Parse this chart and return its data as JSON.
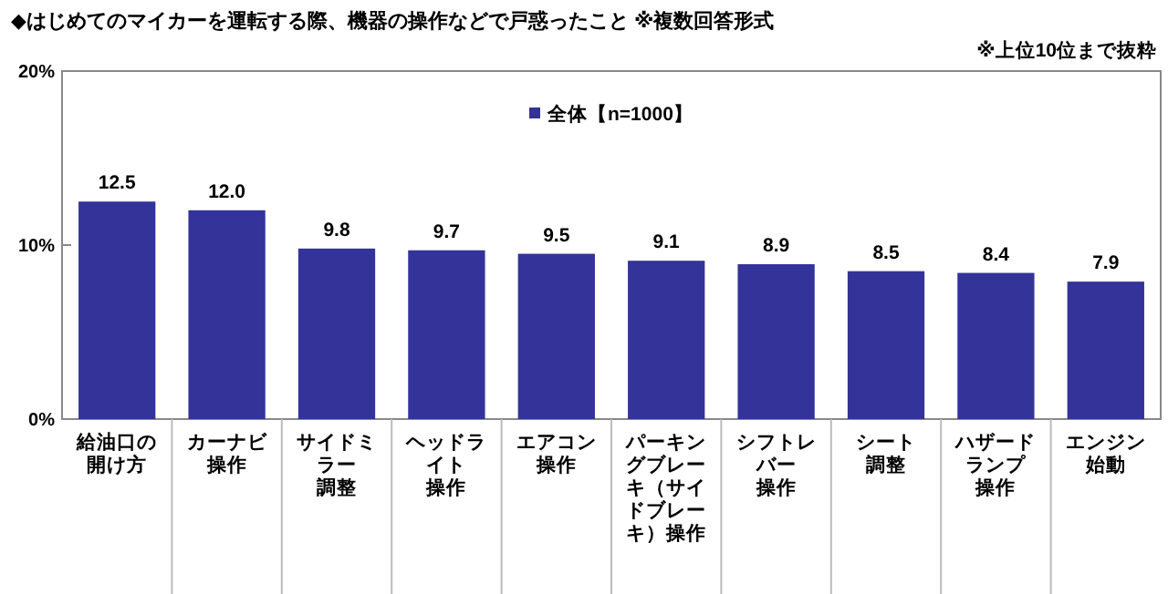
{
  "chart_data": {
    "type": "bar",
    "title": "◆はじめてのマイカーを運転する際、機器の操作などで戸惑ったこと ※複数回答形式",
    "annotations": [
      "※上位10位まで抜粋"
    ],
    "categories": [
      "給油口の開け方",
      "カーナビ操作",
      "サイドミラー調整",
      "ヘッドライト操作",
      "エアコン操作",
      "パーキングブレーキ（サイドブレーキ）操作",
      "シフトレバー操作",
      "シート調整",
      "ハザードランプ操作",
      "エンジン始動"
    ],
    "series": [
      {
        "name": "全体【n=1000】",
        "color": "#333399",
        "values": [
          12.5,
          12.0,
          9.8,
          9.7,
          9.5,
          9.1,
          8.9,
          8.5,
          8.4,
          7.9
        ]
      }
    ],
    "value_labels": [
      "12.5",
      "12.0",
      "9.8",
      "9.7",
      "9.5",
      "9.1",
      "8.9",
      "8.5",
      "8.4",
      "7.9"
    ],
    "ylim": [
      0,
      20
    ],
    "yticks": [
      {
        "value": 0,
        "label": "0%"
      },
      {
        "value": 10,
        "label": "10%"
      },
      {
        "value": 20,
        "label": "20%"
      }
    ],
    "legend": "top"
  }
}
